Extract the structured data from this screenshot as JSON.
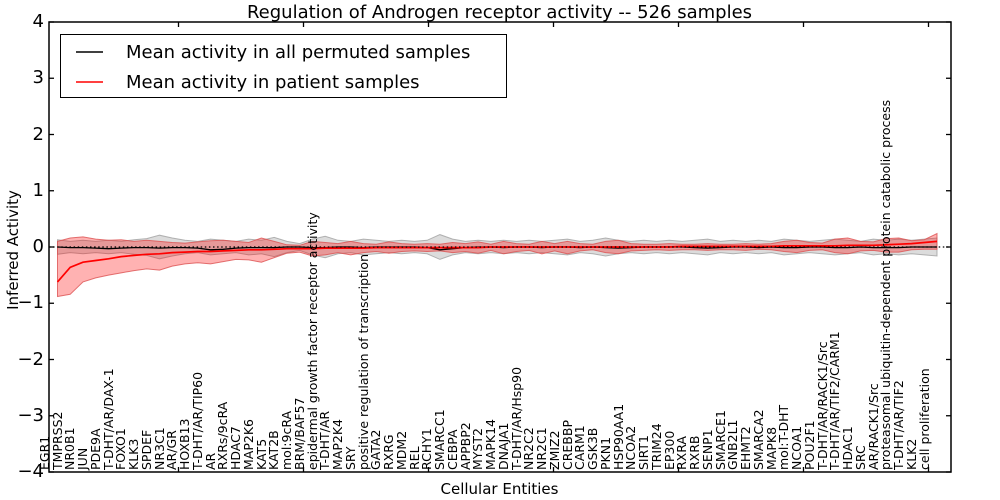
{
  "figure": {
    "title": "Regulation of Androgen receptor activity -- 526 samples",
    "xlabel": "Cellular Entities",
    "ylabel": "Inferred Activity"
  },
  "colors": {
    "permuted_line": "#000000",
    "patient_line": "#ff0000",
    "permuted_band_fill": "rgba(130,130,130,0.28)",
    "permuted_band_edge": "rgba(160,160,160,0.8)",
    "patient_band_fill": "rgba(255,0,0,0.3)",
    "patient_band_edge": "rgba(220,80,80,0.8)",
    "axis": "#000000"
  },
  "chart_data": {
    "type": "line",
    "title": "Regulation of Androgen receptor activity -- 526 samples",
    "xlabel": "Cellular Entities",
    "ylabel": "Inferred Activity",
    "ylim": [
      -4,
      4
    ],
    "yticks": [
      -4,
      -3,
      -2,
      -1,
      0,
      1,
      2,
      3,
      4
    ],
    "grid": false,
    "legend_position": "upper left",
    "zero_line": true,
    "categories": [
      "EGR1",
      "TMPRSS2",
      "NR0B1",
      "JUN",
      "PDE9A",
      "T-DHT/AR/DAX-1",
      "FOXO1",
      "KLK3",
      "SPDEF",
      "NR3C1",
      "AR/GR",
      "HOXB13",
      "T-DHT/AR/TIP60",
      "AR",
      "RXRs/9cRA",
      "HDAC7",
      "MAP2K6",
      "KAT5",
      "KAT2B",
      "mol:9cRA",
      "BRM/BAF57",
      "epidermal growth factor receptor activity",
      "T-DHT/AR",
      "MAP2K4",
      "SRY",
      "positive regulation of transcription",
      "GATA2",
      "RXRG",
      "MDM2",
      "REL",
      "RCHY1",
      "SMARCC1",
      "CEBPA",
      "APPBP2",
      "MYST2",
      "MAPK14",
      "DNAJA1",
      "T-DHT/AR/Hsp90",
      "NR2C2",
      "NR2C1",
      "ZMIZ2",
      "CREBBP",
      "CARM1",
      "GSK3B",
      "PKN1",
      "HSP90AA1",
      "NCOA2",
      "SIRT1",
      "TRIM24",
      "EP300",
      "RXRA",
      "RXRB",
      "SENP1",
      "SMARCE1",
      "GNB2L1",
      "EHMT2",
      "SMARCA2",
      "MAPK8",
      "mol:T-DHT",
      "NCOA1",
      "POU2F1",
      "T-DHT/AR/RACK1/Src",
      "T-DHT/AR/TIF2/CARM1",
      "HDAC1",
      "SRC",
      "AR/RACK1/Src",
      "proteasomal ubiquitin-dependent protein catabolic process",
      "T-DHT/AR/TIF2",
      "KLK2",
      "cell proliferation"
    ],
    "series": [
      {
        "name": "Mean activity in all permuted samples",
        "color": "#000000",
        "values": [
          0.0,
          -0.01,
          -0.01,
          -0.02,
          -0.03,
          -0.02,
          -0.01,
          -0.01,
          -0.02,
          -0.01,
          -0.01,
          -0.02,
          -0.05,
          -0.04,
          -0.02,
          -0.01,
          -0.01,
          -0.01,
          0.0,
          0.0,
          -0.01,
          -0.01,
          0.0,
          0.0,
          -0.01,
          0.0,
          0.0,
          0.0,
          0.0,
          -0.01,
          -0.05,
          -0.03,
          -0.01,
          0.0,
          0.0,
          -0.01,
          0.0,
          0.0,
          -0.01,
          0.0,
          0.0,
          -0.01,
          0.0,
          -0.01,
          -0.02,
          -0.01,
          0.0,
          0.0,
          0.0,
          0.0,
          -0.01,
          -0.02,
          -0.01,
          0.0,
          0.0,
          -0.01,
          0.0,
          -0.01,
          -0.01,
          0.0,
          0.0,
          -0.01,
          -0.01,
          0.0,
          -0.01,
          -0.01,
          -0.01,
          0.0,
          0.0,
          0.0
        ],
        "band_upper": [
          0.13,
          0.1,
          0.12,
          0.1,
          0.12,
          0.1,
          0.13,
          0.15,
          0.21,
          0.16,
          0.12,
          0.1,
          0.14,
          0.12,
          0.1,
          0.14,
          0.12,
          0.17,
          0.1,
          0.06,
          0.14,
          0.19,
          0.12,
          0.1,
          0.14,
          0.12,
          0.1,
          0.12,
          0.1,
          0.12,
          0.22,
          0.14,
          0.1,
          0.12,
          0.1,
          0.12,
          0.1,
          0.12,
          0.1,
          0.12,
          0.14,
          0.1,
          0.12,
          0.16,
          0.12,
          0.1,
          0.12,
          0.1,
          0.12,
          0.1,
          0.12,
          0.14,
          0.1,
          0.12,
          0.1,
          0.12,
          0.1,
          0.14,
          0.12,
          0.1,
          0.12,
          0.14,
          0.12,
          0.1,
          0.14,
          0.12,
          0.14,
          0.12,
          0.14,
          0.16
        ],
        "band_lower": [
          -0.13,
          -0.1,
          -0.12,
          -0.1,
          -0.12,
          -0.1,
          -0.13,
          -0.15,
          -0.21,
          -0.16,
          -0.12,
          -0.1,
          -0.14,
          -0.12,
          -0.1,
          -0.14,
          -0.12,
          -0.17,
          -0.1,
          -0.06,
          -0.14,
          -0.19,
          -0.12,
          -0.1,
          -0.14,
          -0.12,
          -0.1,
          -0.12,
          -0.1,
          -0.12,
          -0.22,
          -0.14,
          -0.1,
          -0.12,
          -0.1,
          -0.12,
          -0.1,
          -0.12,
          -0.1,
          -0.12,
          -0.14,
          -0.1,
          -0.12,
          -0.16,
          -0.12,
          -0.1,
          -0.12,
          -0.1,
          -0.12,
          -0.1,
          -0.12,
          -0.14,
          -0.1,
          -0.12,
          -0.1,
          -0.12,
          -0.1,
          -0.14,
          -0.12,
          -0.1,
          -0.12,
          -0.14,
          -0.12,
          -0.1,
          -0.14,
          -0.12,
          -0.14,
          -0.12,
          -0.14,
          -0.16
        ]
      },
      {
        "name": "Mean activity in patient samples",
        "color": "#ff0000",
        "values": [
          -0.62,
          -0.36,
          -0.27,
          -0.24,
          -0.21,
          -0.17,
          -0.15,
          -0.13,
          -0.12,
          -0.1,
          -0.09,
          -0.08,
          -0.08,
          -0.07,
          -0.06,
          -0.05,
          -0.05,
          -0.04,
          -0.03,
          -0.03,
          -0.03,
          -0.02,
          -0.02,
          -0.02,
          -0.02,
          -0.01,
          -0.01,
          -0.01,
          -0.01,
          -0.01,
          -0.01,
          -0.01,
          -0.01,
          -0.01,
          0.0,
          0.0,
          0.0,
          0.0,
          0.0,
          0.0,
          0.0,
          0.0,
          0.0,
          0.0,
          0.0,
          0.0,
          0.0,
          0.0,
          0.0,
          0.01,
          0.01,
          0.01,
          0.01,
          0.01,
          0.01,
          0.01,
          0.01,
          0.02,
          0.02,
          0.02,
          0.02,
          0.02,
          0.03,
          0.03,
          0.03,
          0.04,
          0.05,
          0.06,
          0.08,
          0.1
        ],
        "band_upper": [
          0.1,
          0.16,
          0.18,
          0.14,
          0.12,
          0.13,
          0.1,
          0.12,
          0.1,
          0.08,
          0.07,
          0.09,
          0.11,
          0.12,
          0.1,
          0.08,
          0.16,
          0.1,
          0.04,
          0.03,
          0.1,
          0.08,
          0.06,
          0.1,
          0.06,
          0.05,
          0.09,
          0.06,
          0.05,
          0.06,
          0.05,
          0.08,
          0.06,
          0.09,
          0.05,
          0.1,
          0.06,
          0.05,
          0.1,
          0.06,
          0.1,
          0.06,
          0.05,
          0.1,
          0.12,
          0.06,
          0.05,
          0.05,
          0.06,
          0.05,
          0.05,
          0.06,
          0.05,
          0.05,
          0.06,
          0.05,
          0.06,
          0.1,
          0.12,
          0.08,
          0.07,
          0.14,
          0.16,
          0.1,
          0.09,
          0.15,
          0.16,
          0.11,
          0.13,
          0.24
        ],
        "band_lower": [
          -0.88,
          -0.84,
          -0.62,
          -0.55,
          -0.5,
          -0.46,
          -0.42,
          -0.39,
          -0.41,
          -0.34,
          -0.3,
          -0.28,
          -0.3,
          -0.26,
          -0.22,
          -0.23,
          -0.27,
          -0.19,
          -0.11,
          -0.09,
          -0.16,
          -0.14,
          -0.1,
          -0.14,
          -0.1,
          -0.08,
          -0.11,
          -0.08,
          -0.07,
          -0.08,
          -0.07,
          -0.1,
          -0.08,
          -0.11,
          -0.06,
          -0.12,
          -0.08,
          -0.06,
          -0.12,
          -0.07,
          -0.12,
          -0.07,
          -0.05,
          -0.1,
          -0.12,
          -0.07,
          -0.06,
          -0.05,
          -0.06,
          -0.05,
          -0.05,
          -0.06,
          -0.05,
          -0.05,
          -0.06,
          -0.04,
          -0.05,
          -0.08,
          -0.1,
          -0.06,
          -0.05,
          -0.1,
          -0.12,
          -0.07,
          -0.06,
          -0.09,
          -0.09,
          -0.05,
          -0.04,
          -0.04
        ]
      }
    ]
  }
}
